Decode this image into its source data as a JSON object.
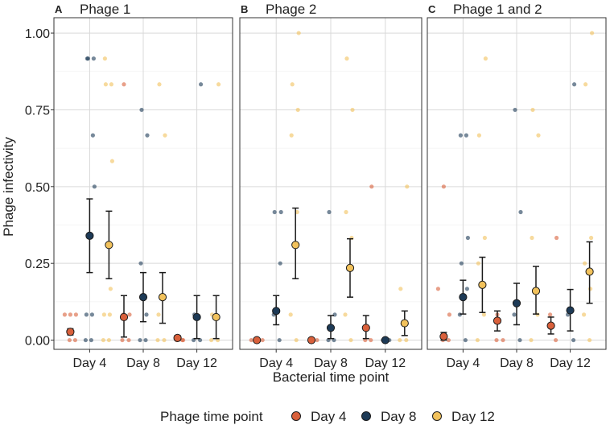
{
  "chart_data": {
    "type": "scatter",
    "title": "",
    "ylabel": "Phage infectivity",
    "xlabel": "Bacterial time point",
    "ylim": [
      -0.03,
      1.05
    ],
    "y_ticks": [
      "0.00",
      "0.25",
      "0.50",
      "0.75",
      "1.00"
    ],
    "y_tick_values": [
      0,
      0.25,
      0.5,
      0.75,
      1.0
    ],
    "categories": [
      "Day 4",
      "Day 8",
      "Day 12"
    ],
    "legend": {
      "title": "Phage time point",
      "placement": "bottom",
      "entries": [
        "Day 4",
        "Day 8",
        "Day 12"
      ]
    },
    "colors": {
      "Day 4": "#d9603b",
      "Day 8": "#1d3a56",
      "Day 12": "#f2c25c"
    },
    "panels": [
      {
        "letter": "A",
        "title": "Phage 1",
        "summary": {
          "Day 4": {
            "Day 4": [
              0.027,
              0.017,
              0.037
            ],
            "Day 8": [
              0.34,
              0.22,
              0.46
            ],
            "Day 12": [
              0.31,
              0.2,
              0.42
            ]
          },
          "Day 8": {
            "Day 4": [
              0.075,
              0.01,
              0.145
            ],
            "Day 8": [
              0.14,
              0.06,
              0.22
            ],
            "Day 12": [
              0.14,
              0.055,
              0.22
            ]
          },
          "Day 12": {
            "Day 4": [
              0.007,
              0.0,
              0.015
            ],
            "Day 8": [
              0.075,
              0.005,
              0.145
            ],
            "Day 12": [
              0.075,
              0.005,
              0.145
            ]
          }
        },
        "points": {
          "Day 4": {
            "Day 4": [
              0.083,
              0.083,
              0.083,
              0.0,
              0.0
            ],
            "Day 8": [
              0.5,
              0.917,
              0.917,
              0.917,
              0.667,
              0.083,
              0.083,
              0.0,
              0.0
            ],
            "Day 12": [
              0.583,
              0.833,
              0.833,
              0.917,
              0.167,
              0.083,
              0.083,
              0.0,
              0.0
            ]
          },
          "Day 8": {
            "Day 4": [
              0.833,
              0.083,
              0.083,
              0.0,
              0.0
            ],
            "Day 8": [
              0.75,
              0.667,
              0.25,
              0.083,
              0.0,
              0.0
            ],
            "Day 12": [
              0.833,
              0.667,
              0.083,
              0.0,
              0.0
            ]
          },
          "Day 12": {
            "Day 4": [
              0.0,
              0.0,
              0.0
            ],
            "Day 8": [
              0.833,
              0.083,
              0.0,
              0.0
            ],
            "Day 12": [
              0.833,
              0.083,
              0.0,
              0.0
            ]
          }
        }
      },
      {
        "letter": "B",
        "title": "Phage 2",
        "summary": {
          "Day 4": {
            "Day 4": [
              0.0,
              0.0,
              0.0
            ],
            "Day 8": [
              0.095,
              0.05,
              0.145
            ],
            "Day 12": [
              0.31,
              0.2,
              0.43
            ]
          },
          "Day 8": {
            "Day 4": [
              0.0,
              0.0,
              0.0
            ],
            "Day 8": [
              0.04,
              0.005,
              0.08
            ],
            "Day 12": [
              0.235,
              0.14,
              0.33
            ]
          },
          "Day 12": {
            "Day 4": [
              0.04,
              0.005,
              0.08
            ],
            "Day 8": [
              0.0,
              0.0,
              0.0
            ],
            "Day 12": [
              0.055,
              0.015,
              0.095
            ]
          }
        },
        "points": {
          "Day 4": {
            "Day 4": [
              0.0,
              0.0,
              0.0
            ],
            "Day 8": [
              0.417,
              0.417,
              0.25,
              0.083,
              0.0
            ],
            "Day 12": [
              1.0,
              0.833,
              0.75,
              0.667,
              0.417,
              0.083,
              0.0
            ]
          },
          "Day 8": {
            "Day 4": [
              0.0,
              0.0
            ],
            "Day 8": [
              0.417,
              0.083,
              0.0,
              0.0
            ],
            "Day 12": [
              0.917,
              0.75,
              0.417,
              0.333,
              0.083,
              0.0
            ]
          },
          "Day 12": {
            "Day 4": [
              0.5,
              0.0,
              0.0
            ],
            "Day 8": [
              0.0,
              0.0
            ],
            "Day 12": [
              0.5,
              0.167,
              0.0,
              0.0
            ]
          }
        }
      },
      {
        "letter": "C",
        "title": "Phage 1 and 2",
        "summary": {
          "Day 4": {
            "Day 4": [
              0.012,
              0.0,
              0.025
            ],
            "Day 8": [
              0.14,
              0.085,
              0.195
            ],
            "Day 12": [
              0.18,
              0.09,
              0.27
            ]
          },
          "Day 8": {
            "Day 4": [
              0.063,
              0.03,
              0.095
            ],
            "Day 8": [
              0.12,
              0.05,
              0.185
            ],
            "Day 12": [
              0.16,
              0.085,
              0.24
            ]
          },
          "Day 12": {
            "Day 4": [
              0.047,
              0.02,
              0.075
            ],
            "Day 8": [
              0.097,
              0.03,
              0.165
            ],
            "Day 12": [
              0.223,
              0.12,
              0.32
            ]
          }
        },
        "points": {
          "Day 4": {
            "Day 4": [
              0.167,
              0.5,
              0.083,
              0.0,
              0.0
            ],
            "Day 8": [
              0.333,
              0.25,
              0.167,
              0.667,
              0.667,
              0.083,
              0.0
            ],
            "Day 12": [
              0.917,
              0.667,
              0.333,
              0.25,
              0.083,
              0.0
            ]
          },
          "Day 8": {
            "Day 4": [
              0.083,
              0.0,
              0.0
            ],
            "Day 8": [
              0.75,
              0.417,
              0.083,
              0.0
            ],
            "Day 12": [
              0.75,
              0.667,
              0.333,
              0.083,
              0.0
            ]
          },
          "Day 12": {
            "Day 4": [
              0.333,
              0.083,
              0.0
            ],
            "Day 8": [
              0.833,
              0.083,
              0.0
            ],
            "Day 12": [
              1.0,
              0.833,
              0.333,
              0.25,
              0.167,
              0.083,
              0.0
            ]
          }
        }
      }
    ]
  }
}
